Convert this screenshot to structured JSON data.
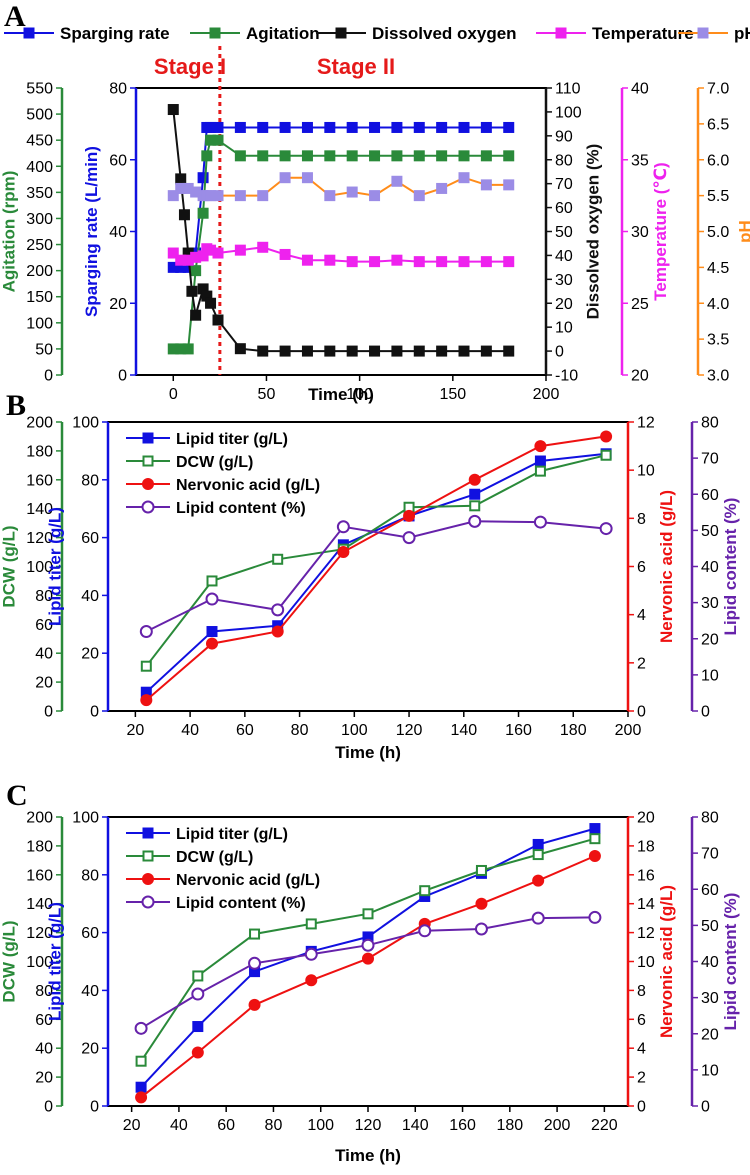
{
  "figure": {
    "panels": [
      {
        "letter": "A"
      },
      {
        "letter": "B"
      },
      {
        "letter": "C"
      }
    ]
  },
  "colors": {
    "blue": "#1010e0",
    "green": "#2a8a3a",
    "black": "#111111",
    "magenta": "#ee22ee",
    "orange": "#ff8c1a",
    "lilac": "#9b8ce6",
    "red": "#ee1111",
    "purple": "#6622aa",
    "stageRed": "#e51a1a"
  },
  "chart_data": [
    {
      "id": "A",
      "type": "line",
      "xlabel": "Time (h)",
      "xlim": [
        -20,
        200
      ],
      "xticks": [
        0,
        50,
        100,
        150,
        200
      ],
      "stages": [
        {
          "label": "Stage I"
        },
        {
          "label": "Stage II"
        }
      ],
      "stage_divider_x": 25,
      "axes": [
        {
          "key": "agit",
          "label": "Agitation (rpm)",
          "side": "left",
          "order": 0,
          "lim": [
            0,
            550
          ],
          "ticks": [
            0,
            50,
            100,
            150,
            200,
            250,
            300,
            350,
            400,
            450,
            500,
            550
          ],
          "color": "#2a8a3a"
        },
        {
          "key": "spar",
          "label": "Sparging rate (L/min)",
          "side": "left",
          "order": 1,
          "lim": [
            0,
            80
          ],
          "ticks": [
            0,
            20,
            40,
            60,
            80
          ],
          "color": "#1010e0"
        },
        {
          "key": "do",
          "label": "Dissolved oxygen (%)",
          "side": "right",
          "order": 0,
          "lim": [
            -10,
            110
          ],
          "ticks": [
            -10,
            0,
            10,
            20,
            30,
            40,
            50,
            60,
            70,
            80,
            90,
            100,
            110
          ],
          "color": "#111111"
        },
        {
          "key": "temp",
          "label": "Temperature (℃)",
          "side": "right",
          "order": 1,
          "lim": [
            20,
            40
          ],
          "ticks": [
            20,
            25,
            30,
            35,
            40
          ],
          "color": "#ee22ee"
        },
        {
          "key": "ph",
          "label": "pH",
          "side": "right",
          "order": 2,
          "lim": [
            3.0,
            7.0
          ],
          "ticks": [
            "3.0",
            "3.5",
            "4.0",
            "4.5",
            "5.0",
            "5.5",
            "6.0",
            "6.5",
            "7.0"
          ],
          "color": "#ff8c1a"
        }
      ],
      "series": [
        {
          "name": "Sparging rate",
          "axis": "spar",
          "marker": "square-filled",
          "color": "#1010e0",
          "x": [
            0,
            4,
            8,
            12,
            16,
            18,
            20,
            24,
            36,
            48,
            60,
            72,
            84,
            96,
            108,
            120,
            132,
            144,
            156,
            168,
            180
          ],
          "y": [
            30,
            30,
            30,
            34,
            55,
            69,
            69,
            69,
            69,
            69,
            69,
            69,
            69,
            69,
            69,
            69,
            69,
            69,
            69,
            69,
            69
          ]
        },
        {
          "name": "Agitation",
          "axis": "agit",
          "marker": "square-filled",
          "color": "#2a8a3a",
          "x": [
            0,
            4,
            8,
            12,
            16,
            18,
            20,
            24,
            36,
            48,
            60,
            72,
            84,
            96,
            108,
            120,
            132,
            144,
            156,
            168,
            180
          ],
          "y": [
            50,
            50,
            50,
            200,
            310,
            420,
            450,
            450,
            420,
            420,
            420,
            420,
            420,
            420,
            420,
            420,
            420,
            420,
            420,
            420,
            420
          ]
        },
        {
          "name": "Dissolved oxygen",
          "axis": "do",
          "marker": "square-filled",
          "color": "#111111",
          "x": [
            0,
            4,
            6,
            8,
            10,
            12,
            16,
            18,
            20,
            24,
            36,
            48,
            60,
            72,
            84,
            96,
            108,
            120,
            132,
            144,
            156,
            168,
            180
          ],
          "y": [
            101,
            72,
            57,
            41,
            25,
            15,
            26,
            23,
            20,
            13,
            1,
            0,
            0,
            0,
            0,
            0,
            0,
            0,
            0,
            0,
            0,
            0,
            0
          ]
        },
        {
          "name": "Temperature",
          "axis": "temp",
          "marker": "square-filled",
          "color": "#ee22ee",
          "x": [
            0,
            4,
            8,
            12,
            16,
            18,
            20,
            24,
            36,
            48,
            60,
            72,
            84,
            96,
            108,
            120,
            132,
            144,
            156,
            168,
            180
          ],
          "y": [
            28.5,
            28.0,
            28.0,
            28.2,
            28.3,
            28.8,
            28.7,
            28.5,
            28.7,
            28.9,
            28.4,
            28.0,
            28.0,
            27.9,
            27.9,
            28.0,
            27.9,
            27.9,
            27.9,
            27.9,
            27.9
          ]
        },
        {
          "name": "pH",
          "axis": "ph",
          "marker": "square-filled",
          "color": "#9b8ce6",
          "lineColor": "#ff8c1a",
          "x": [
            0,
            4,
            8,
            12,
            16,
            18,
            20,
            24,
            36,
            48,
            60,
            72,
            84,
            96,
            108,
            120,
            132,
            144,
            156,
            168,
            180
          ],
          "y": [
            5.5,
            5.6,
            5.6,
            5.55,
            5.5,
            5.5,
            5.5,
            5.5,
            5.5,
            5.5,
            5.75,
            5.75,
            5.5,
            5.55,
            5.5,
            5.7,
            5.5,
            5.6,
            5.75,
            5.65,
            5.65
          ]
        }
      ],
      "legend": [
        "Sparging rate",
        "Agitation",
        "Dissolved oxygen",
        "Temperature",
        "pH"
      ]
    },
    {
      "id": "B",
      "type": "line",
      "xlabel": "Time (h)",
      "xlim": [
        10,
        200
      ],
      "xticks": [
        20,
        40,
        60,
        80,
        100,
        120,
        140,
        160,
        180,
        200
      ],
      "axes": [
        {
          "key": "dcw",
          "label": "DCW (g/L)",
          "side": "left",
          "order": 0,
          "lim": [
            0,
            200
          ],
          "ticks": [
            0,
            20,
            40,
            60,
            80,
            100,
            120,
            140,
            160,
            180,
            200
          ],
          "color": "#2a8a3a"
        },
        {
          "key": "titer",
          "label": "Lipid titer (g/L)",
          "side": "left",
          "order": 1,
          "lim": [
            0,
            100
          ],
          "ticks": [
            0,
            20,
            40,
            60,
            80,
            100
          ],
          "color": "#1010e0"
        },
        {
          "key": "na",
          "label": "Nervonic acid (g/L)",
          "side": "right",
          "order": 0,
          "lim": [
            0,
            12
          ],
          "ticks": [
            0,
            2,
            4,
            6,
            8,
            10,
            12
          ],
          "color": "#ee1111"
        },
        {
          "key": "lc",
          "label": "Lipid content (%)",
          "side": "right",
          "order": 1,
          "lim": [
            0,
            80
          ],
          "ticks": [
            0,
            10,
            20,
            30,
            40,
            50,
            60,
            70,
            80
          ],
          "color": "#6622aa"
        }
      ],
      "series": [
        {
          "name": "Lipid titer (g/L)",
          "axis": "titer",
          "marker": "square-filled",
          "color": "#1010e0",
          "x": [
            24,
            48,
            72,
            96,
            120,
            144,
            168,
            192
          ],
          "y": [
            6.5,
            27.5,
            29.5,
            57.5,
            67.5,
            75,
            86.5,
            89
          ]
        },
        {
          "name": "DCW (g/L)",
          "axis": "dcw",
          "marker": "square-open",
          "color": "#2a8a3a",
          "x": [
            24,
            48,
            72,
            96,
            120,
            144,
            168,
            192
          ],
          "y": [
            31,
            90,
            105,
            112,
            141,
            142,
            166,
            177
          ]
        },
        {
          "name": "Nervonic acid (g/L)",
          "axis": "na",
          "marker": "circle-filled",
          "color": "#ee1111",
          "x": [
            24,
            48,
            72,
            96,
            120,
            144,
            168,
            192
          ],
          "y": [
            0.45,
            2.8,
            3.3,
            6.6,
            8.1,
            9.6,
            11.0,
            11.4
          ]
        },
        {
          "name": "Lipid content (%)",
          "axis": "lc",
          "marker": "circle-open",
          "color": "#6622aa",
          "x": [
            24,
            48,
            72,
            96,
            120,
            144,
            168,
            192
          ],
          "y": [
            22,
            31,
            28,
            51,
            48,
            52.5,
            52.3,
            50.5
          ]
        }
      ],
      "legend": [
        "Lipid titer (g/L)",
        "DCW (g/L)",
        "Nervonic acid (g/L)",
        "Lipid content (%)"
      ]
    },
    {
      "id": "C",
      "type": "line",
      "xlabel": "Time (h)",
      "xlim": [
        10,
        230
      ],
      "xticks": [
        20,
        40,
        60,
        80,
        100,
        120,
        140,
        160,
        180,
        200,
        220
      ],
      "axes": [
        {
          "key": "dcw",
          "label": "DCW (g/L)",
          "side": "left",
          "order": 0,
          "lim": [
            0,
            200
          ],
          "ticks": [
            0,
            20,
            40,
            60,
            80,
            100,
            120,
            140,
            160,
            180,
            200
          ],
          "color": "#2a8a3a"
        },
        {
          "key": "titer",
          "label": "Lipid titer (g/L)",
          "side": "left",
          "order": 1,
          "lim": [
            0,
            100
          ],
          "ticks": [
            0,
            20,
            40,
            60,
            80,
            100
          ],
          "color": "#1010e0"
        },
        {
          "key": "na",
          "label": "Nervonic acid (g/L)",
          "side": "right",
          "order": 0,
          "lim": [
            0,
            20
          ],
          "ticks": [
            0,
            2,
            4,
            6,
            8,
            10,
            12,
            14,
            16,
            18,
            20
          ],
          "color": "#ee1111"
        },
        {
          "key": "lc",
          "label": "Lipid content (%)",
          "side": "right",
          "order": 1,
          "lim": [
            0,
            80
          ],
          "ticks": [
            0,
            10,
            20,
            30,
            40,
            50,
            60,
            70,
            80
          ],
          "color": "#6622aa"
        }
      ],
      "series": [
        {
          "name": "Lipid titer (g/L)",
          "axis": "titer",
          "marker": "square-filled",
          "color": "#1010e0",
          "x": [
            24,
            48,
            72,
            96,
            120,
            144,
            168,
            192,
            216
          ],
          "y": [
            6.5,
            27.5,
            46.5,
            53.5,
            58.5,
            72.5,
            80.5,
            90.5,
            96
          ]
        },
        {
          "name": "DCW (g/L)",
          "axis": "dcw",
          "marker": "square-open",
          "color": "#2a8a3a",
          "x": [
            24,
            48,
            72,
            96,
            120,
            144,
            168,
            192,
            216
          ],
          "y": [
            31,
            90,
            119,
            126,
            133,
            149,
            163,
            174,
            185
          ]
        },
        {
          "name": "Nervonic acid (g/L)",
          "axis": "na",
          "marker": "circle-filled",
          "color": "#ee1111",
          "x": [
            24,
            48,
            72,
            96,
            120,
            144,
            168,
            192,
            216
          ],
          "y": [
            0.6,
            3.7,
            7.0,
            8.7,
            10.2,
            12.6,
            14.0,
            15.6,
            17.3
          ]
        },
        {
          "name": "Lipid content (%)",
          "axis": "lc",
          "marker": "circle-open",
          "color": "#6622aa",
          "x": [
            24,
            48,
            72,
            96,
            120,
            144,
            168,
            192,
            216
          ],
          "y": [
            21.5,
            31,
            39.5,
            42,
            44.5,
            48.5,
            49,
            52,
            52.2
          ]
        }
      ],
      "legend": [
        "Lipid titer (g/L)",
        "DCW (g/L)",
        "Nervonic acid (g/L)",
        "Lipid content (%)"
      ]
    }
  ]
}
